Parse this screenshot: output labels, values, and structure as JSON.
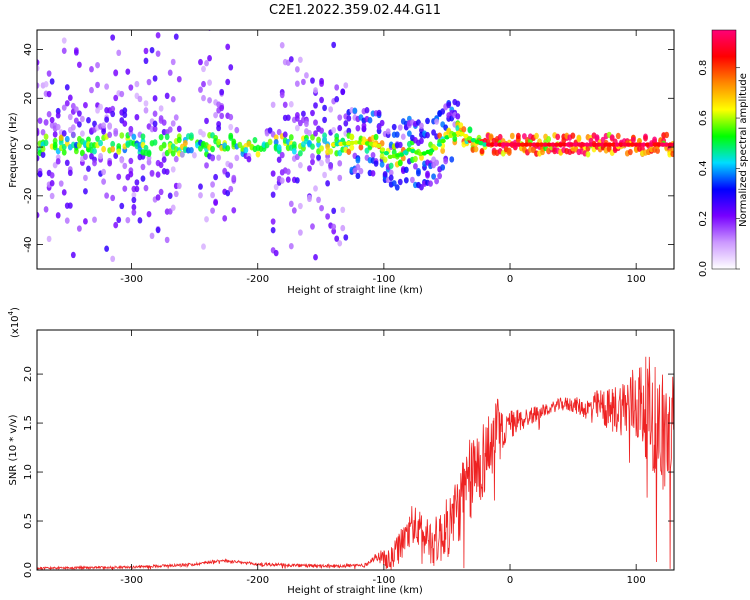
{
  "figure": {
    "title": "C2E1.2022.359.02.44.G11"
  },
  "chart_data": [
    {
      "type": "heatmap",
      "xlabel": "Height of straight line (km)",
      "ylabel": "Frequency (Hz)",
      "xlim": [
        -375,
        130
      ],
      "ylim": [
        -50,
        48
      ],
      "xticks": [
        -300,
        -200,
        -100,
        0,
        100
      ],
      "yticks": [
        -40,
        -20,
        0,
        20,
        40
      ],
      "colorbar": {
        "label": "Normalized spectral amplitude",
        "range": [
          0.0,
          0.95
        ],
        "ticks": [
          "0.0",
          "0.2",
          "0.4",
          "0.6",
          "0.8"
        ],
        "tick_values": [
          0.0,
          0.2,
          0.4,
          0.6,
          0.8
        ],
        "colors": [
          "#ffffff",
          "#cc99ff",
          "#7700ff",
          "#0000ff",
          "#00ddff",
          "#00ff00",
          "#ffff00",
          "#ff8800",
          "#ff0000",
          "#ff0077"
        ]
      },
      "grid": false,
      "ridge": [
        {
          "x": -140,
          "y": 1
        },
        {
          "x": -120,
          "y": 2
        },
        {
          "x": -105,
          "y": 1
        },
        {
          "x": -95,
          "y": -4
        },
        {
          "x": -85,
          "y": -3
        },
        {
          "x": -80,
          "y": -1
        },
        {
          "x": -70,
          "y": -3
        },
        {
          "x": -60,
          "y": -1
        },
        {
          "x": -50,
          "y": 4
        },
        {
          "x": -40,
          "y": 6
        },
        {
          "x": -30,
          "y": 3
        },
        {
          "x": -20,
          "y": 1
        },
        {
          "x": 0,
          "y": 1
        },
        {
          "x": 50,
          "y": 1
        },
        {
          "x": 100,
          "y": 1
        },
        {
          "x": 130,
          "y": 1
        }
      ]
    },
    {
      "type": "line",
      "xlabel": "Height of straight line (km)",
      "ylabel": "SNR (10 * v/v)",
      "scale_label": "(x10",
      "scale_exp": "4",
      "xlim": [
        -375,
        130
      ],
      "ylim": [
        0,
        2.45
      ],
      "xticks": [
        -300,
        -200,
        -100,
        0,
        100
      ],
      "yticks": [
        "0.0",
        "0.5",
        "1.0",
        "1.5",
        "2.0"
      ],
      "ytick_values": [
        0.0,
        0.5,
        1.0,
        1.5,
        2.0
      ],
      "grid": false,
      "series": [
        {
          "color": "#ee2222",
          "envelope": [
            {
              "x": -375,
              "y": 0.02
            },
            {
              "x": -300,
              "y": 0.03
            },
            {
              "x": -250,
              "y": 0.06
            },
            {
              "x": -230,
              "y": 0.1
            },
            {
              "x": -200,
              "y": 0.06
            },
            {
              "x": -150,
              "y": 0.04
            },
            {
              "x": -115,
              "y": 0.05
            },
            {
              "x": -105,
              "y": 0.15
            },
            {
              "x": -95,
              "y": 0.1
            },
            {
              "x": -85,
              "y": 0.3
            },
            {
              "x": -78,
              "y": 0.5
            },
            {
              "x": -70,
              "y": 0.4
            },
            {
              "x": -60,
              "y": 0.3
            },
            {
              "x": -50,
              "y": 0.45
            },
            {
              "x": -40,
              "y": 0.7
            },
            {
              "x": -30,
              "y": 1.0
            },
            {
              "x": -20,
              "y": 1.2
            },
            {
              "x": -10,
              "y": 1.45
            },
            {
              "x": 0,
              "y": 1.5
            },
            {
              "x": 10,
              "y": 1.55
            },
            {
              "x": 20,
              "y": 1.6
            },
            {
              "x": 30,
              "y": 1.65
            },
            {
              "x": 40,
              "y": 1.7
            },
            {
              "x": 50,
              "y": 1.7
            },
            {
              "x": 60,
              "y": 1.65
            },
            {
              "x": 70,
              "y": 1.7
            },
            {
              "x": 80,
              "y": 1.65
            },
            {
              "x": 90,
              "y": 1.7
            },
            {
              "x": 100,
              "y": 1.75
            },
            {
              "x": 110,
              "y": 1.7
            },
            {
              "x": 120,
              "y": 1.5
            },
            {
              "x": 130,
              "y": 1.4
            }
          ],
          "noise": [
            {
              "x": -375,
              "a": 0.01
            },
            {
              "x": -110,
              "a": 0.02
            },
            {
              "x": -90,
              "a": 0.15
            },
            {
              "x": -60,
              "a": 0.25
            },
            {
              "x": -30,
              "a": 0.45
            },
            {
              "x": -10,
              "a": 0.35
            },
            {
              "x": 0,
              "a": 0.15
            },
            {
              "x": 30,
              "a": 0.05
            },
            {
              "x": 60,
              "a": 0.1
            },
            {
              "x": 90,
              "a": 0.3
            },
            {
              "x": 110,
              "a": 0.55
            },
            {
              "x": 130,
              "a": 0.7
            }
          ]
        }
      ]
    }
  ]
}
